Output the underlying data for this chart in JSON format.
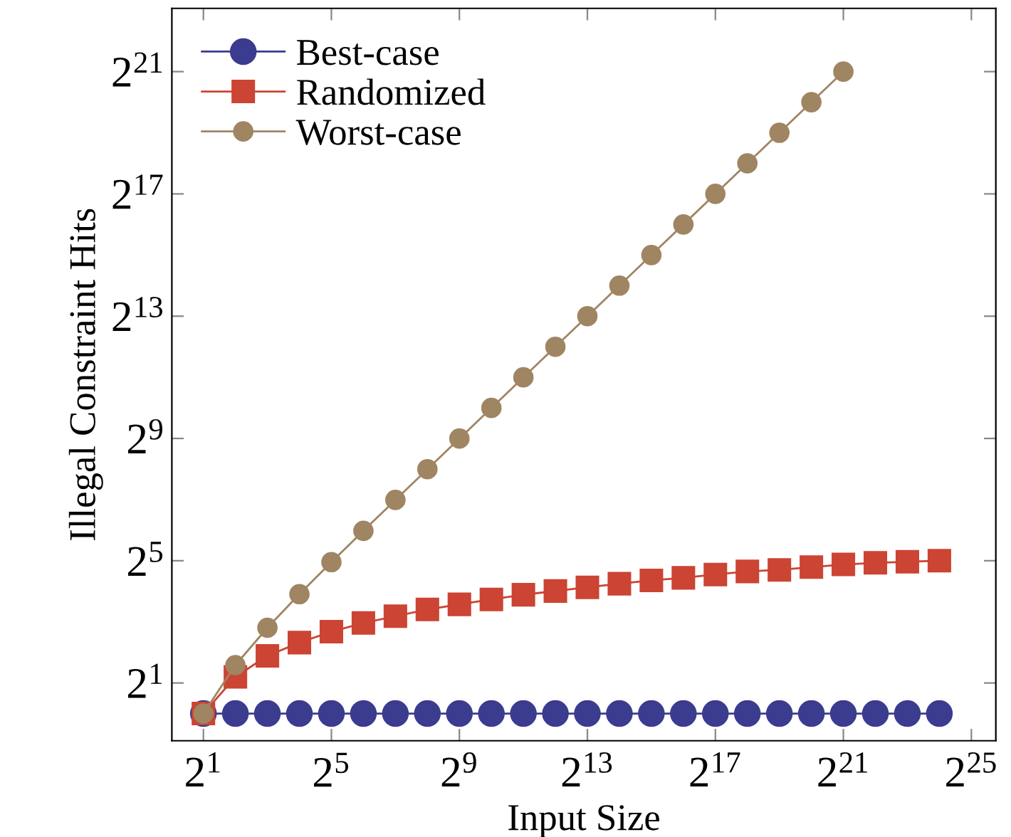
{
  "chart_data": {
    "type": "line",
    "xlabel": "Input Size",
    "ylabel": "Illegal Constraint Hits",
    "log": "xy",
    "grid": false,
    "legend": "top left",
    "xlim": [
      1.01,
      57000000
    ],
    "ylim": [
      0.54,
      8800000
    ],
    "xticks": [
      {
        "value": 2,
        "label": "2$^{1}$"
      },
      {
        "value": 32,
        "label": "2$^{5}$"
      },
      {
        "value": 512,
        "label": "2$^{9}$"
      },
      {
        "value": 8192,
        "label": "2$^{13}$"
      },
      {
        "value": 131072,
        "label": "2$^{17}$"
      },
      {
        "value": 2097152,
        "label": "2$^{21}$"
      },
      {
        "value": 33554432,
        "label": "2$^{25}$"
      }
    ],
    "yticks": [
      {
        "value": 2,
        "label": "2$^{1}$"
      },
      {
        "value": 32,
        "label": "2$^{5}$"
      },
      {
        "value": 512,
        "label": "2$^{9}$"
      },
      {
        "value": 8192,
        "label": "2$^{13}$"
      },
      {
        "value": 131072,
        "label": "2$^{17}$"
      },
      {
        "value": 2097152,
        "label": "2$^{21}$"
      }
    ],
    "series": [
      {
        "name": "Best-case",
        "color": "#3b3b8f",
        "marker": "circle",
        "x": [
          2,
          4,
          8,
          16,
          32,
          64,
          128,
          256,
          512,
          1024,
          2048,
          4096,
          8192,
          16384,
          32768,
          65536,
          131072,
          262144,
          524288,
          1048576,
          2097152,
          4194304,
          8388608,
          16777216
        ],
        "values": [
          1,
          1,
          1,
          1,
          1,
          1,
          1,
          1,
          1,
          1,
          1,
          1,
          1,
          1,
          1,
          1,
          1,
          1,
          1,
          1,
          1,
          1,
          1,
          1
        ]
      },
      {
        "name": "Randomized",
        "color": "#cc4433",
        "marker": "square",
        "x": [
          2,
          4,
          8,
          16,
          32,
          64,
          128,
          256,
          512,
          1024,
          2048,
          4096,
          8192,
          16384,
          32768,
          65536,
          131072,
          262144,
          524288,
          1048576,
          2097152,
          4194304,
          8388608,
          16777216
        ],
        "values": [
          1,
          2.3,
          3.7,
          5.0,
          6.4,
          7.8,
          9.1,
          10.6,
          11.9,
          13.3,
          14.8,
          16.1,
          17.5,
          19.0,
          20.5,
          21.7,
          23.4,
          25.1,
          26.0,
          27.7,
          29.4,
          30.5,
          31.3,
          32
        ]
      },
      {
        "name": "Worst-case",
        "color": "#a08563",
        "marker": "circle",
        "x": [
          2,
          4,
          8,
          16,
          32,
          64,
          128,
          256,
          512,
          1024,
          2048,
          4096,
          8192,
          16384,
          32768,
          65536,
          131072,
          262144,
          524288,
          1048576,
          2097152
        ],
        "values": [
          1,
          3,
          7,
          15,
          31,
          63,
          127,
          255,
          511,
          1023,
          2047,
          4095,
          8191,
          16383,
          32767,
          65535,
          131071,
          262143,
          524287,
          1048575,
          2097151
        ]
      }
    ]
  }
}
